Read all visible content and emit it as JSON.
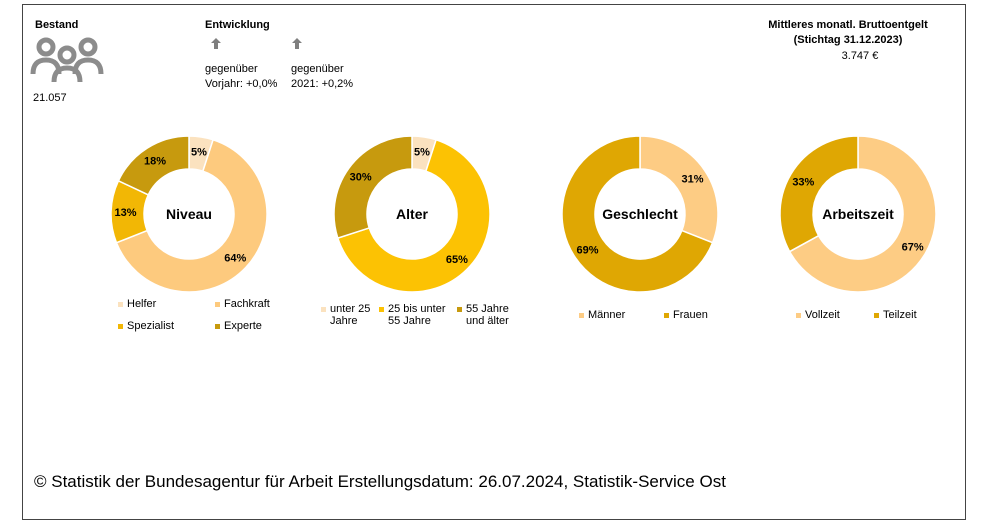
{
  "header": {
    "bestand_label": "Bestand",
    "bestand_value": "21.057",
    "entwicklung_label": "Entwicklung",
    "vorjahr_line1": "gegenüber",
    "vorjahr_line2": "Vorjahr: +0,0%",
    "stichtag_line1": "gegenüber",
    "stichtag_line2": "2021: +0,2%",
    "entgelt_title": "Mittleres monatl. Bruttoentgelt",
    "entgelt_subtitle": "(Stichtag 31.12.2023)",
    "entgelt_value": "3.747 €"
  },
  "chart_data": [
    {
      "type": "pie",
      "title": "Niveau",
      "categories": [
        "Helfer",
        "Fachkraft",
        "Spezialist",
        "Experte"
      ],
      "values": [
        5,
        64,
        13,
        18
      ],
      "value_labels": [
        "5%",
        "64%",
        "13%",
        "18%"
      ],
      "colors": [
        "#fbe2bf",
        "#fdca7e",
        "#f2b705",
        "#c79a0e"
      ]
    },
    {
      "type": "pie",
      "title": "Alter",
      "categories": [
        "unter 25 Jahre",
        "25 bis unter 55 Jahre",
        "55 Jahre und älter"
      ],
      "values": [
        5,
        65,
        30
      ],
      "value_labels": [
        "5%",
        "65%",
        "30%"
      ],
      "colors": [
        "#fbe2bf",
        "#fcc203",
        "#c79a0e"
      ]
    },
    {
      "type": "pie",
      "title": "Geschlecht",
      "categories": [
        "Männer",
        "Frauen"
      ],
      "values": [
        31,
        69
      ],
      "value_labels": [
        "31%",
        "69%"
      ],
      "colors": [
        "#fdcc84",
        "#dfa703"
      ]
    },
    {
      "type": "pie",
      "title": "Arbeitszeit",
      "categories": [
        "Vollzeit",
        "Teilzeit"
      ],
      "values": [
        67,
        33
      ],
      "value_labels": [
        "67%",
        "33%"
      ],
      "colors": [
        "#fdcc84",
        "#dfa703"
      ]
    }
  ],
  "footer": "© Statistik der Bundesagentur für Arbeit Erstellungsdatum: 26.07.2024, Statistik-Service Ost"
}
